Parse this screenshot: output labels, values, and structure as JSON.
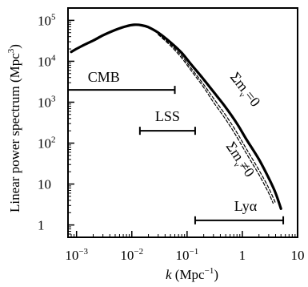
{
  "chart_data": {
    "type": "line",
    "xlabel_var": "k",
    "xlabel_unit_base": " (Mpc",
    "xlabel_unit_exp": "−1",
    "xlabel_unit_close": ")",
    "ylabel_base": "Linear power spectrum (Mpc",
    "ylabel_exp": "3",
    "ylabel_close": ")",
    "x_scale": "log",
    "y_scale": "log",
    "xlim": [
      0.0007,
      10
    ],
    "ylim": [
      0.5,
      200000
    ],
    "grid": false,
    "x_ticks": [
      {
        "base": "10",
        "exp": "−3",
        "value": 0.001
      },
      {
        "base": "10",
        "exp": "−2",
        "value": 0.01
      },
      {
        "base": "10",
        "exp": "−1",
        "value": 0.1
      },
      {
        "base": "1",
        "exp": "",
        "value": 1
      },
      {
        "base": "10",
        "exp": "",
        "value": 10
      }
    ],
    "y_ticks": [
      {
        "base": "10",
        "exp": "5",
        "value": 100000
      },
      {
        "base": "10",
        "exp": "4",
        "value": 10000
      },
      {
        "base": "10",
        "exp": "3",
        "value": 1000
      },
      {
        "base": "10",
        "exp": "2",
        "value": 100
      },
      {
        "base": "10",
        "exp": "",
        "value": 10
      },
      {
        "base": "1",
        "exp": "",
        "value": 1
      }
    ],
    "series": [
      {
        "style": "solid",
        "label_prefix": "Σm",
        "label_sub": "ν",
        "label_suffix": "=0",
        "x": [
          0.0008,
          0.0012,
          0.002,
          0.003,
          0.005,
          0.008,
          0.011,
          0.015,
          0.02,
          0.03,
          0.05,
          0.08,
          0.12,
          0.2,
          0.3,
          0.5,
          0.8,
          1.2,
          2,
          3,
          4,
          5
        ],
        "y": [
          17000,
          23000,
          32000,
          43000,
          58000,
          72000,
          78000,
          76000,
          68000,
          50000,
          29000,
          16000,
          8200,
          3600,
          1800,
          750,
          300,
          120,
          40,
          14,
          6,
          2.5
        ]
      },
      {
        "style": "dashed",
        "label_prefix": "Σm",
        "label_sub": "ν",
        "label_suffix": "≠0",
        "x": [
          0.03,
          0.05,
          0.08,
          0.12,
          0.2,
          0.3,
          0.5,
          0.8,
          1.2,
          2,
          3,
          4
        ],
        "y": [
          47000,
          26000,
          13500,
          6600,
          2700,
          1250,
          480,
          180,
          70,
          22,
          8,
          3.4
        ]
      },
      {
        "style": "dashed",
        "x": [
          0.03,
          0.05,
          0.08,
          0.12,
          0.2,
          0.3,
          0.5,
          0.8,
          1.2,
          2,
          3,
          3.6
        ],
        "y": [
          45000,
          24000,
          12000,
          5800,
          2300,
          1000,
          380,
          140,
          54,
          17,
          6,
          3.4
        ]
      }
    ],
    "ranges": [
      {
        "label": "CMB",
        "k_min": 0.0007,
        "k_max": 0.06,
        "y": 2000
      },
      {
        "label": "LSS",
        "k_min": 0.014,
        "k_max": 0.14,
        "y": 200
      },
      {
        "label": "Lyα",
        "k_min": 0.14,
        "k_max": 5.5,
        "y": 1.3
      }
    ]
  }
}
